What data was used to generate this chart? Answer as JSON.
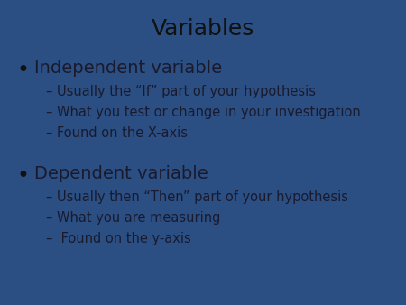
{
  "title": "Variables",
  "background_color": "#2b4f82",
  "text_color": "#1a1a2e",
  "title_color": "#111111",
  "bullet1_header": "Independent variable",
  "bullet1_sub": [
    "– Usually the “If” part of your hypothesis",
    "– What you test or change in your investigation",
    "– Found on the X-axis"
  ],
  "bullet2_header": "Dependent variable",
  "bullet2_sub": [
    "– Usually then “Then” part of your hypothesis",
    "– What you are measuring",
    "–  Found on the y-axis"
  ],
  "title_fontsize": 18,
  "header_fontsize": 14,
  "sub_fontsize": 10.5,
  "bullet_color": "#111111"
}
